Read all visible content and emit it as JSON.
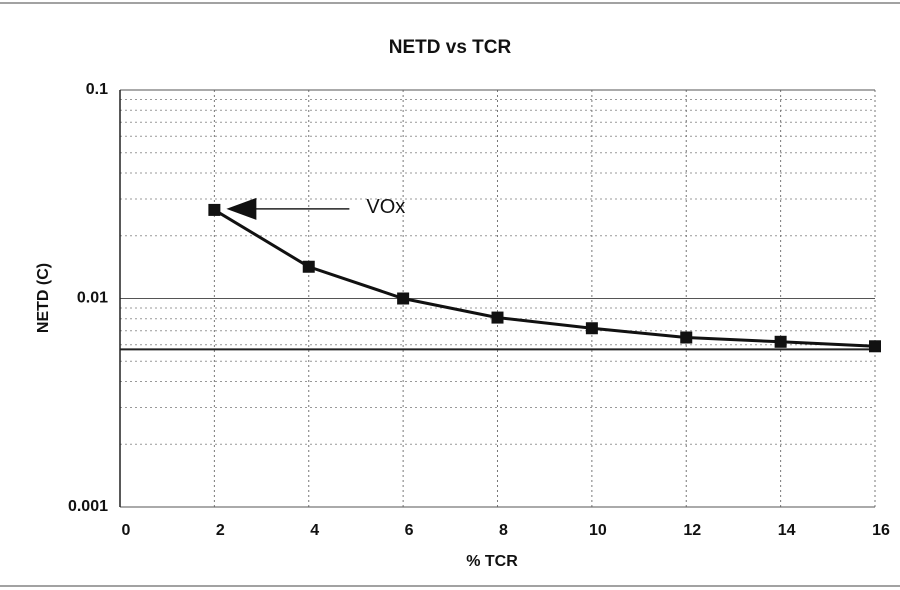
{
  "chart_data": {
    "type": "line",
    "title": "NETD vs TCR",
    "x_label": "% TCR",
    "y_label": "NETD  (C)",
    "x": [
      2,
      4,
      6,
      8,
      10,
      12,
      14,
      16
    ],
    "series": [
      {
        "color": "#111111",
        "values": [
          0.0266,
          0.0142,
          0.01,
          0.0081,
          0.0072,
          0.0065,
          0.0062,
          0.0059
        ]
      }
    ],
    "reference_line": 0.0057,
    "annotation": "VOx",
    "xlim": [
      0,
      16
    ],
    "xticks": [
      0,
      2,
      4,
      6,
      8,
      10,
      12,
      14,
      16
    ],
    "ylim": [
      0.001,
      0.1
    ],
    "yticks": [
      0.001,
      0.01,
      0.1
    ],
    "yminor_ticks": [
      0.002,
      0.003,
      0.004,
      0.005,
      0.006,
      0.007,
      0.008,
      0.009,
      0.02,
      0.03,
      0.04,
      0.05,
      0.06,
      0.07,
      0.08,
      0.09
    ],
    "log_y": true,
    "grid": true
  }
}
